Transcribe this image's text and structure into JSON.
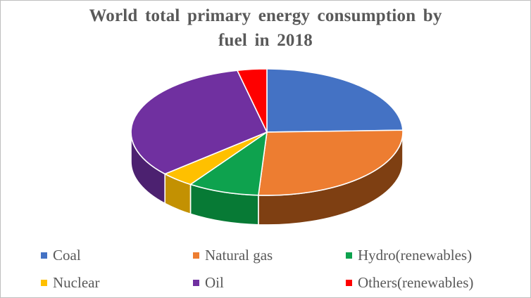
{
  "window": {
    "background_color": "#FFFFFF",
    "border_color": "#BFBFBF"
  },
  "title": {
    "line1": "World total primary energy consumption by",
    "line2": "fuel in 2018",
    "color": "#595959"
  },
  "legend": {
    "position": "bottom",
    "rows": 2,
    "columns": 3,
    "text_color": "#595959"
  },
  "chart_data": {
    "type": "pie",
    "title": "World total primary energy consumption by fuel in 2018",
    "unit": "percent",
    "is_3d": true,
    "start_angle_deg": 0,
    "direction": "clockwise",
    "legend_position": "bottom",
    "data_labels_shown": false,
    "slices": [
      {
        "label": "Coal",
        "value": 24.5,
        "color": "#4472C4",
        "side_color": "#2F5597"
      },
      {
        "label": "Natural gas",
        "value": 26.5,
        "color": "#ED7D31",
        "side_color": "#7E3F12"
      },
      {
        "label": "Hydro(renewables)",
        "value": 8.5,
        "color": "#0EA24E",
        "side_color": "#077A35"
      },
      {
        "label": "Nuclear",
        "value": 4.0,
        "color": "#FFC000",
        "side_color": "#C39102"
      },
      {
        "label": "Oil",
        "value": 33.0,
        "color": "#7030A0",
        "side_color": "#4C2170"
      },
      {
        "label": "Others(renewables)",
        "value": 3.5,
        "color": "#FE0000",
        "side_color": "#A30000"
      }
    ]
  }
}
